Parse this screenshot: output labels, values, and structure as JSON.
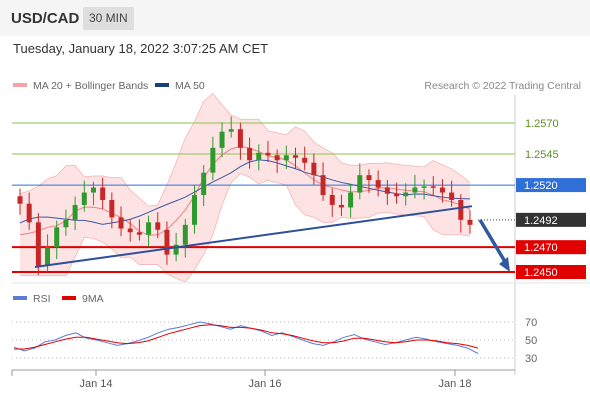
{
  "header": {
    "symbol": "USD/CAD",
    "timeframe": "30 MIN",
    "datetime": "Tuesday, January 18, 2022 3:07:25 AM CET"
  },
  "legend": {
    "ma20_label": "MA 20 + Bollinger Bands",
    "ma50_label": "MA 50",
    "credit": "Research © 2022 Trading Central",
    "ma20_color": "#f08080",
    "ma50_color": "#1f3d7a"
  },
  "rsi_legend": {
    "rsi_label": "RSI",
    "ma_label": "9MA",
    "rsi_color": "#5b7bd5",
    "ma_color": "#e00000"
  },
  "chart_data": {
    "type": "candlestick",
    "x_ticks": [
      "Jan 14",
      "Jan 16",
      "Jan 18"
    ],
    "y_range": [
      1.244,
      1.259
    ],
    "levels": [
      {
        "value": "1.2570",
        "role": "resistance",
        "color": "#8bc34a"
      },
      {
        "value": "1.2545",
        "role": "resistance",
        "color": "#8bc34a"
      },
      {
        "value": "1.2520",
        "role": "pivot",
        "color": "#2f6fd8"
      },
      {
        "value": "1.2492",
        "role": "last",
        "color": "#333333"
      },
      {
        "value": "1.2470",
        "role": "support",
        "color": "#e00000"
      },
      {
        "value": "1.2450",
        "role": "support",
        "color": "#e00000"
      }
    ],
    "price_path": [
      1.2505,
      1.249,
      1.2455,
      1.247,
      1.2486,
      1.2492,
      1.2504,
      1.2514,
      1.2518,
      1.2508,
      1.2494,
      1.2485,
      1.2482,
      1.248,
      1.249,
      1.2484,
      1.2464,
      1.2472,
      1.2488,
      1.2512,
      1.253,
      1.255,
      1.2563,
      1.2565,
      1.255,
      1.254,
      1.2546,
      1.2544,
      1.254,
      1.2544,
      1.2542,
      1.2538,
      1.2528,
      1.2512,
      1.2504,
      1.2502,
      1.2514,
      1.2528,
      1.2524,
      1.2518,
      1.2513,
      1.2511,
      1.2514,
      1.2518,
      1.2519,
      1.2518,
      1.2514,
      1.2508,
      1.2492,
      1.2488
    ],
    "trendline": [
      [
        0.0,
        1.2454
      ],
      [
        1.0,
        1.2503
      ]
    ],
    "forecast_arrow": [
      [
        0.0,
        1.2492
      ],
      [
        1.0,
        1.245
      ]
    ],
    "rsi": {
      "levels": [
        70,
        50,
        30
      ],
      "rsi_values": [
        42,
        38,
        41,
        48,
        50,
        55,
        58,
        52,
        50,
        47,
        44,
        46,
        49,
        53,
        58,
        62,
        64,
        67,
        70,
        68,
        65,
        62,
        66,
        63,
        60,
        55,
        58,
        54,
        50,
        46,
        44,
        48,
        53,
        56,
        51,
        48,
        45,
        47,
        50,
        53,
        51,
        48,
        46,
        44,
        41,
        35
      ],
      "ma_values": [
        40,
        40,
        42,
        45,
        48,
        51,
        53,
        53,
        51,
        49,
        47,
        46,
        47,
        49,
        53,
        57,
        60,
        63,
        66,
        67,
        66,
        64,
        64,
        63,
        61,
        58,
        57,
        55,
        52,
        49,
        47,
        47,
        49,
        52,
        52,
        50,
        48,
        47,
        48,
        50,
        50,
        49,
        47,
        46,
        44,
        41
      ]
    }
  }
}
